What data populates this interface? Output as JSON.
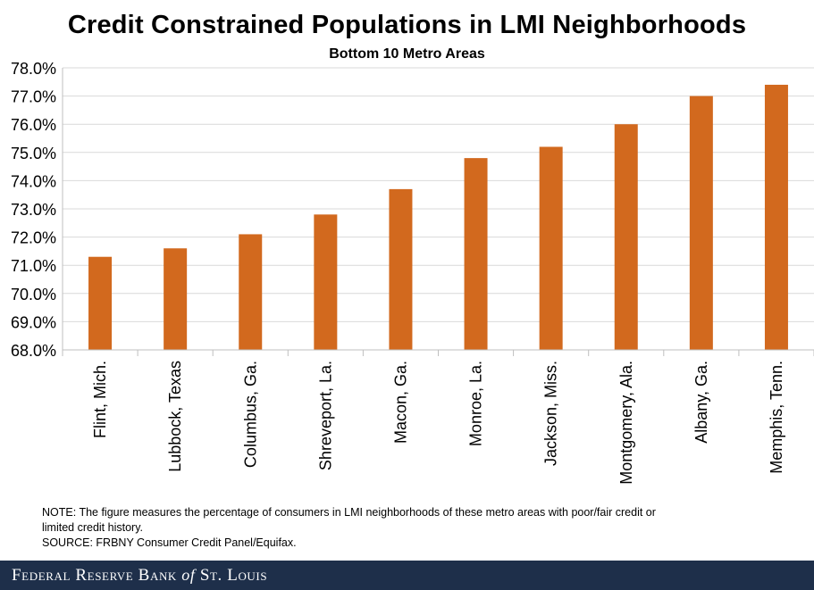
{
  "chart_data": {
    "type": "bar",
    "title": "Credit Constrained Populations in LMI Neighborhoods",
    "subtitle": "Bottom 10 Metro Areas",
    "categories": [
      "Flint, Mich.",
      "Lubbock, Texas",
      "Columbus, Ga.",
      "Shreveport, La.",
      "Macon, Ga.",
      "Monroe, La.",
      "Jackson, Miss.",
      "Montgomery, Ala.",
      "Albany, Ga.",
      "Memphis, Tenn."
    ],
    "values": [
      71.3,
      71.6,
      72.1,
      72.8,
      73.7,
      74.8,
      75.2,
      76.0,
      77.0,
      77.4
    ],
    "ylim": [
      68,
      78
    ],
    "yticks": [
      "68.0%",
      "69.0%",
      "70.0%",
      "71.0%",
      "72.0%",
      "73.0%",
      "74.0%",
      "75.0%",
      "76.0%",
      "77.0%",
      "78.0%"
    ],
    "xlabel": "",
    "ylabel": "",
    "grid": true,
    "bar_color": "#d2691e"
  },
  "notes": {
    "note_line1": "NOTE: The figure measures the percentage of consumers in LMI neighborhoods of these metro areas with poor/fair credit or",
    "note_line2": "limited credit history.",
    "source": "SOURCE: FRBNY Consumer Credit Panel/Equifax."
  },
  "footer": {
    "brand_prefix": "Federal Reserve Bank ",
    "brand_of": "of",
    "brand_suffix": " St. Louis"
  }
}
